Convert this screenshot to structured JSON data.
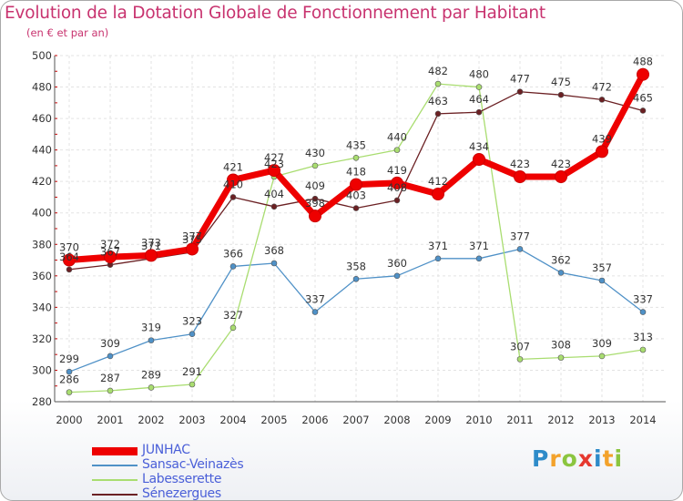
{
  "title": "Evolution de la Dotation Globale de Fonctionnement par Habitant",
  "subtitle": "(en € et par an)",
  "brand": {
    "letters": [
      "P",
      "r",
      "o",
      "x",
      "i",
      "t",
      "i"
    ],
    "colors": [
      "#2e8bc9",
      "#f3a22b",
      "#8bc53f",
      "#e6382f",
      "#2e8bc9",
      "#f3a22b",
      "#8bc53f"
    ]
  },
  "chart_data": {
    "type": "line",
    "title": "Evolution de la Dotation Globale de Fonctionnement par Habitant",
    "subtitle": "(en € et par an)",
    "xlabel": "",
    "ylabel": "",
    "ylim": [
      280,
      500
    ],
    "yticks": [
      280,
      300,
      320,
      340,
      360,
      380,
      400,
      420,
      440,
      460,
      480,
      500
    ],
    "categories": [
      "2000",
      "2001",
      "2002",
      "2003",
      "2004",
      "2005",
      "2006",
      "2007",
      "2008",
      "2009",
      "2010",
      "2011",
      "2012",
      "2013",
      "2014"
    ],
    "grid": true,
    "legend_position": "bottom-left",
    "series": [
      {
        "name": "JUNHAC",
        "color": "#ee0000",
        "highlight": true,
        "values": [
          370,
          372,
          373,
          377,
          421,
          427,
          398,
          418,
          419,
          412,
          434,
          423,
          423,
          439,
          488
        ]
      },
      {
        "name": "Sansac-Veinazès",
        "color": "#4f91c7",
        "highlight": false,
        "values": [
          299,
          309,
          319,
          323,
          366,
          368,
          337,
          358,
          360,
          371,
          371,
          377,
          362,
          357,
          337
        ]
      },
      {
        "name": "Labesserette",
        "color": "#a9dd70",
        "highlight": false,
        "values": [
          286,
          287,
          289,
          291,
          327,
          423,
          430,
          435,
          440,
          482,
          480,
          307,
          308,
          309,
          313
        ]
      },
      {
        "name": "Sénezergues",
        "color": "#6b2023",
        "highlight": false,
        "values": [
          364,
          367,
          371,
          375,
          410,
          404,
          409,
          403,
          408,
          463,
          464,
          477,
          475,
          472,
          465
        ]
      }
    ]
  }
}
